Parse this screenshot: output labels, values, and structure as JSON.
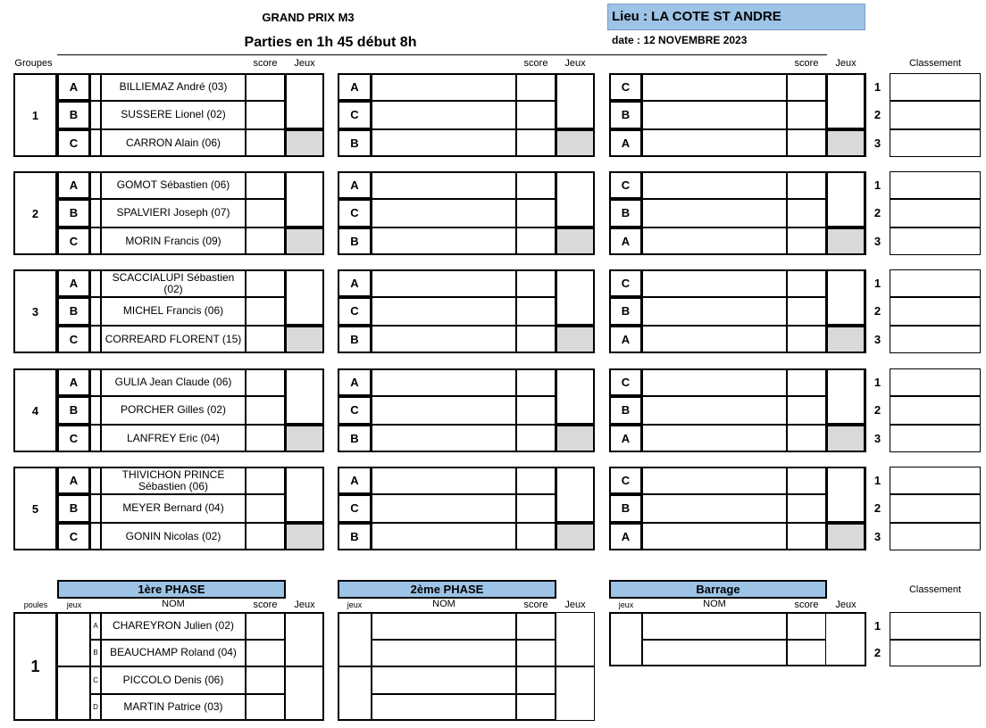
{
  "header": {
    "title": "GRAND PRIX M3",
    "subtitle": "Parties en 1h 45 début 8h",
    "lieu": "Lieu : LA COTE ST ANDRE",
    "date": "date : 12 NOVEMBRE 2023"
  },
  "labels": {
    "groupes": "Groupes",
    "score": "score",
    "jeux": "Jeux",
    "classement": "Classement",
    "poules": "poules",
    "jeux_small": "jeux",
    "nom": "NOM"
  },
  "colors": {
    "header_fill": "#9dc3e6",
    "bye_cell": "#d9d9d9"
  },
  "groups": [
    {
      "number": "1",
      "players": [
        {
          "letter": "A",
          "name": "BILLIEMAZ André (03)"
        },
        {
          "letter": "B",
          "name": "SUSSERE Lionel (02)"
        },
        {
          "letter": "C",
          "name": "CARRON Alain (06)"
        }
      ]
    },
    {
      "number": "2",
      "players": [
        {
          "letter": "A",
          "name": "GOMOT Sébastien (06)"
        },
        {
          "letter": "B",
          "name": "SPALVIERI Joseph (07)"
        },
        {
          "letter": "C",
          "name": "MORIN Francis (09)"
        }
      ]
    },
    {
      "number": "3",
      "players": [
        {
          "letter": "A",
          "name": "SCACCIALUPI Sébastien (02)"
        },
        {
          "letter": "B",
          "name": "MICHEL Francis (06)"
        },
        {
          "letter": "C",
          "name": "CORREARD FLORENT (15)"
        }
      ]
    },
    {
      "number": "4",
      "players": [
        {
          "letter": "A",
          "name": "GULIA Jean Claude (06)"
        },
        {
          "letter": "B",
          "name": "PORCHER Gilles (02)"
        },
        {
          "letter": "C",
          "name": "LANFREY Eric (04)"
        }
      ]
    },
    {
      "number": "5",
      "players": [
        {
          "letter": "A",
          "name": "THIVICHON PRINCE Sébastien (06)"
        },
        {
          "letter": "B",
          "name": "MEYER Bernard (04)"
        },
        {
          "letter": "C",
          "name": "GONIN Nicolas (02)"
        }
      ]
    }
  ],
  "round2_letters": [
    "A",
    "C",
    "B"
  ],
  "round3_letters": [
    "C",
    "B",
    "A"
  ],
  "ranks": [
    "1",
    "2",
    "3"
  ],
  "final": {
    "phase1": "1ère PHASE",
    "phase2": "2ème PHASE",
    "barrage": "Barrage",
    "poule": "1",
    "players": [
      {
        "letter": "A",
        "name": "CHAREYRON Julien (02)"
      },
      {
        "letter": "B",
        "name": "BEAUCHAMP Roland (04)"
      },
      {
        "letter": "C",
        "name": "PICCOLO Denis (06)"
      },
      {
        "letter": "D",
        "name": "MARTIN Patrice (03)"
      }
    ],
    "ranks": [
      "1",
      "2"
    ]
  }
}
